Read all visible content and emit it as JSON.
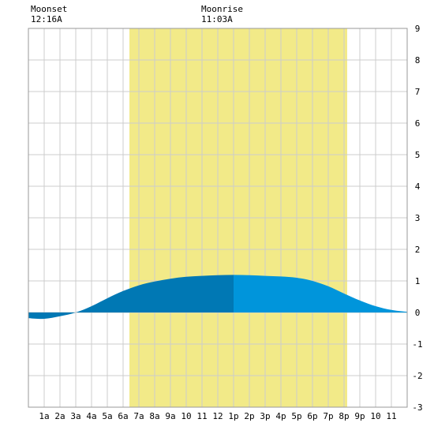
{
  "header": {
    "moonset": {
      "label": "Moonset",
      "time": "12:16A"
    },
    "moonrise": {
      "label": "Moonrise",
      "time": "11:03A"
    }
  },
  "chart_data": {
    "type": "area",
    "title": "",
    "xlabel": "",
    "ylabel": "",
    "xlim": [
      0,
      24
    ],
    "ylim": [
      -3,
      9
    ],
    "grid": true,
    "x_tick_labels": [
      "1a",
      "2a",
      "3a",
      "4a",
      "5a",
      "6a",
      "7a",
      "8a",
      "9a",
      "10",
      "11",
      "12",
      "1p",
      "2p",
      "3p",
      "4p",
      "5p",
      "6p",
      "7p",
      "8p",
      "9p",
      "10",
      "11"
    ],
    "y_tick_labels": [
      "-3",
      "-2",
      "-1",
      "0",
      "1",
      "2",
      "3",
      "4",
      "5",
      "6",
      "7",
      "8",
      "9"
    ],
    "daylight": {
      "start_hour": 6.4,
      "end_hour": 20.2,
      "color": "#f2ea88"
    },
    "split_hour": 13.0,
    "colors": {
      "before_split": "#0078b4",
      "after_split": "#0095db"
    },
    "series": [
      {
        "values": [
          [
            0,
            -0.18
          ],
          [
            1,
            -0.2
          ],
          [
            2,
            -0.12
          ],
          [
            3,
            0.0
          ],
          [
            4,
            0.2
          ],
          [
            5,
            0.45
          ],
          [
            6,
            0.68
          ],
          [
            7,
            0.86
          ],
          [
            8,
            0.98
          ],
          [
            9,
            1.07
          ],
          [
            10,
            1.13
          ],
          [
            11,
            1.16
          ],
          [
            12,
            1.18
          ],
          [
            13,
            1.19
          ],
          [
            14,
            1.18
          ],
          [
            15,
            1.16
          ],
          [
            16,
            1.14
          ],
          [
            17,
            1.1
          ],
          [
            18,
            1.0
          ],
          [
            19,
            0.83
          ],
          [
            20,
            0.6
          ],
          [
            21,
            0.38
          ],
          [
            22,
            0.2
          ],
          [
            23,
            0.08
          ],
          [
            24,
            0.02
          ]
        ]
      }
    ]
  }
}
